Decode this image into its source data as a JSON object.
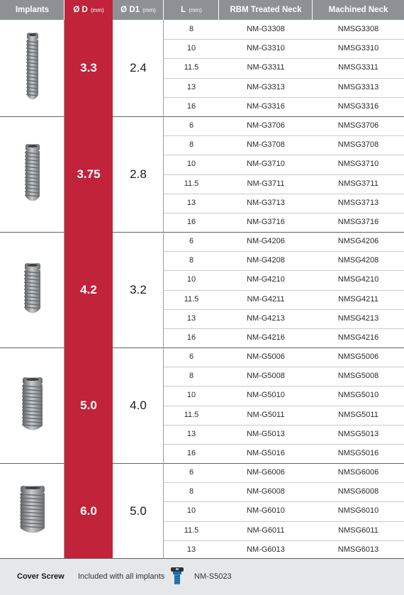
{
  "header": {
    "implants": "Implants",
    "d": "Ø D",
    "d_unit": "(mm)",
    "d1": "Ø D1",
    "d1_unit": "(mm)",
    "l": "L",
    "l_unit": "(mm)",
    "rbm": "RBM Treated Neck",
    "machined": "Machined Neck"
  },
  "groups": [
    {
      "d": "3.3",
      "d1": "2.4",
      "rows": [
        {
          "l": "8",
          "rbm": "NM-G3308",
          "mach": "NMSG3308"
        },
        {
          "l": "10",
          "rbm": "NM-G3310",
          "mach": "NMSG3310"
        },
        {
          "l": "11.5",
          "rbm": "NM-G3311",
          "mach": "NMSG3311"
        },
        {
          "l": "13",
          "rbm": "NM-G3313",
          "mach": "NMSG3313"
        },
        {
          "l": "16",
          "rbm": "NM-G3316",
          "mach": "NMSG3316"
        }
      ]
    },
    {
      "d": "3.75",
      "d1": "2.8",
      "rows": [
        {
          "l": "6",
          "rbm": "NM-G3706",
          "mach": "NMSG3706"
        },
        {
          "l": "8",
          "rbm": "NM-G3708",
          "mach": "NMSG3708"
        },
        {
          "l": "10",
          "rbm": "NM-G3710",
          "mach": "NMSG3710"
        },
        {
          "l": "11.5",
          "rbm": "NM-G3711",
          "mach": "NMSG3711"
        },
        {
          "l": "13",
          "rbm": "NM-G3713",
          "mach": "NMSG3713"
        },
        {
          "l": "16",
          "rbm": "NM-G3716",
          "mach": "NMSG3716"
        }
      ]
    },
    {
      "d": "4.2",
      "d1": "3.2",
      "rows": [
        {
          "l": "6",
          "rbm": "NM-G4206",
          "mach": "NMSG4206"
        },
        {
          "l": "8",
          "rbm": "NM-G4208",
          "mach": "NMSG4208"
        },
        {
          "l": "10",
          "rbm": "NM-G4210",
          "mach": "NMSG4210"
        },
        {
          "l": "11.5",
          "rbm": "NM-G4211",
          "mach": "NMSG4211"
        },
        {
          "l": "13",
          "rbm": "NM-G4213",
          "mach": "NMSG4213"
        },
        {
          "l": "16",
          "rbm": "NM-G4216",
          "mach": "NMSG4216"
        }
      ]
    },
    {
      "d": "5.0",
      "d1": "4.0",
      "rows": [
        {
          "l": "6",
          "rbm": "NM-G5006",
          "mach": "NMSG5006"
        },
        {
          "l": "8",
          "rbm": "NM-G5008",
          "mach": "NMSG5008"
        },
        {
          "l": "10",
          "rbm": "NM-G5010",
          "mach": "NMSG5010"
        },
        {
          "l": "11.5",
          "rbm": "NM-G5011",
          "mach": "NMSG5011"
        },
        {
          "l": "13",
          "rbm": "NM-G5013",
          "mach": "NMSG5013"
        },
        {
          "l": "16",
          "rbm": "NM-G5016",
          "mach": "NMSG5016"
        }
      ]
    },
    {
      "d": "6.0",
      "d1": "5.0",
      "rows": [
        {
          "l": "6",
          "rbm": "NM-G6006",
          "mach": "NMSG6006"
        },
        {
          "l": "8",
          "rbm": "NM-G6008",
          "mach": "NMSG6008"
        },
        {
          "l": "10",
          "rbm": "NM-G6010",
          "mach": "NMSG6010"
        },
        {
          "l": "11.5",
          "rbm": "NM-G6011",
          "mach": "NMSG6011"
        },
        {
          "l": "13",
          "rbm": "NM-G6013",
          "mach": "NMSG6013"
        }
      ]
    }
  ],
  "footer": {
    "label": "Cover Screw",
    "text": "Included with all implants",
    "code": "NM-S5023"
  },
  "colors": {
    "header_bg": "#8d9094",
    "accent_red": "#c0233a",
    "footer_bg": "#e6e7e8"
  }
}
